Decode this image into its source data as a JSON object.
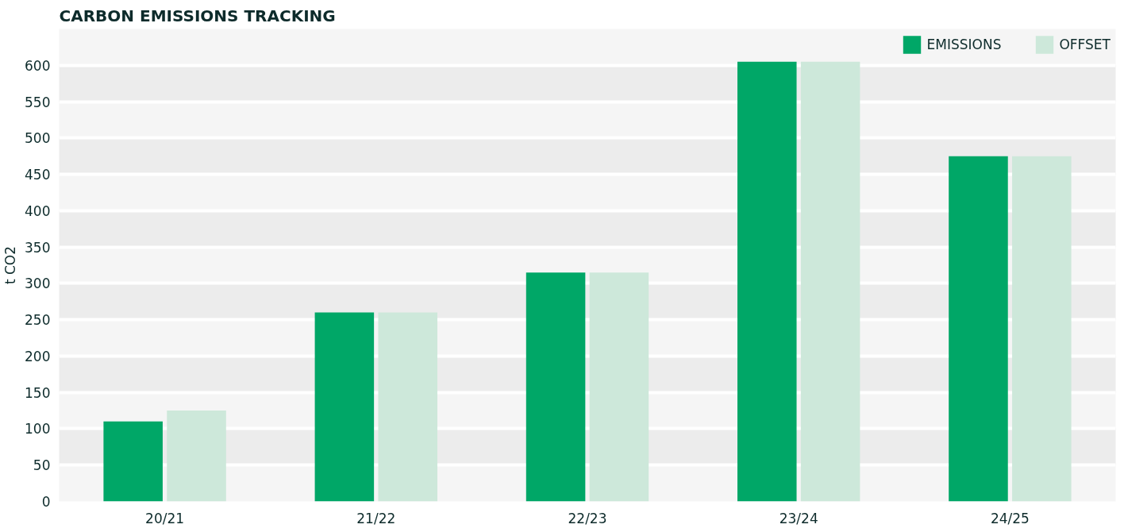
{
  "chart_data": {
    "type": "bar",
    "title": "CARBON EMISSIONS TRACKING",
    "ylabel": "t CO2",
    "categories": [
      "20/21",
      "21/22",
      "22/23",
      "23/24",
      "24/25"
    ],
    "series": [
      {
        "name": "EMISSIONS",
        "color": "#00a767",
        "values": [
          110,
          260,
          315,
          605,
          475
        ]
      },
      {
        "name": "OFFSET",
        "color": "#cde8da",
        "values": [
          125,
          260,
          315,
          605,
          475
        ]
      }
    ],
    "ylim": [
      0,
      650
    ],
    "yticks": [
      0,
      50,
      100,
      150,
      200,
      250,
      300,
      350,
      400,
      450,
      500,
      550,
      600
    ],
    "grid": "y",
    "legend": "top right"
  }
}
